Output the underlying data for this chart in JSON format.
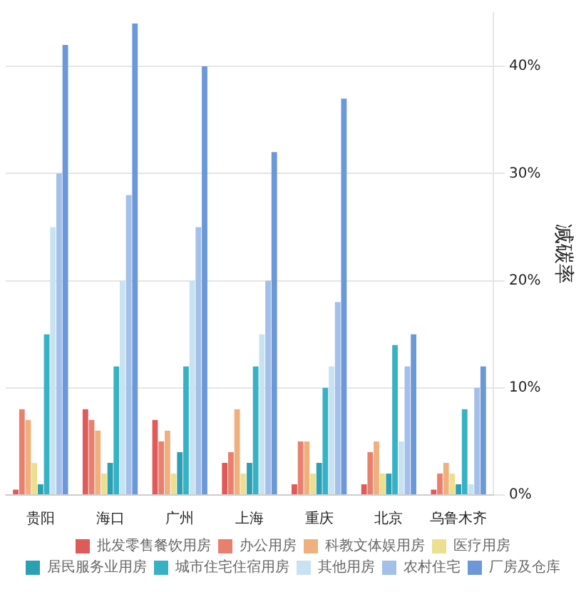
{
  "chart_data": {
    "type": "bar",
    "ylabel": "减碳率",
    "categories": [
      "贵阳",
      "海口",
      "广州",
      "上海",
      "重庆",
      "北京",
      "乌鲁木齐"
    ],
    "series": [
      {
        "name": "批发零售餐饮用房",
        "color": "#e05a5a",
        "values": [
          0.5,
          8,
          7,
          3,
          1,
          1,
          0.5
        ]
      },
      {
        "name": "办公用房",
        "color": "#e8806e",
        "values": [
          8,
          7,
          5,
          4,
          5,
          4,
          2
        ]
      },
      {
        "name": "科教文体娱用房",
        "color": "#f0b07e",
        "values": [
          7,
          6,
          6,
          8,
          5,
          5,
          3
        ]
      },
      {
        "name": "医疗用房",
        "color": "#ece08e",
        "values": [
          3,
          2,
          2,
          2,
          2,
          2,
          2
        ]
      },
      {
        "name": "居民服务业用房",
        "color": "#2aa0b4",
        "values": [
          1,
          3,
          4,
          3,
          3,
          2,
          1
        ]
      },
      {
        "name": "城市住宅住宿用房",
        "color": "#36b2c4",
        "values": [
          15,
          12,
          12,
          12,
          10,
          14,
          8
        ]
      },
      {
        "name": "其他用房",
        "color": "#c8e2f2",
        "values": [
          25,
          20,
          20,
          15,
          12,
          5,
          1
        ]
      },
      {
        "name": "农村住宅",
        "color": "#a2c0e8",
        "values": [
          30,
          28,
          25,
          20,
          18,
          12,
          10
        ]
      },
      {
        "name": "厂房及仓库",
        "color": "#6a98d8",
        "values": [
          42,
          44,
          40,
          32,
          37,
          15,
          12
        ]
      }
    ],
    "ylim": [
      0,
      45
    ],
    "yticks": [
      {
        "value": 0,
        "label": "0%"
      },
      {
        "value": 10,
        "label": "10%"
      },
      {
        "value": 20,
        "label": "20%"
      },
      {
        "value": 30,
        "label": "30%"
      },
      {
        "value": 40,
        "label": "40%"
      }
    ],
    "grid": "y",
    "legend": "bottom"
  }
}
